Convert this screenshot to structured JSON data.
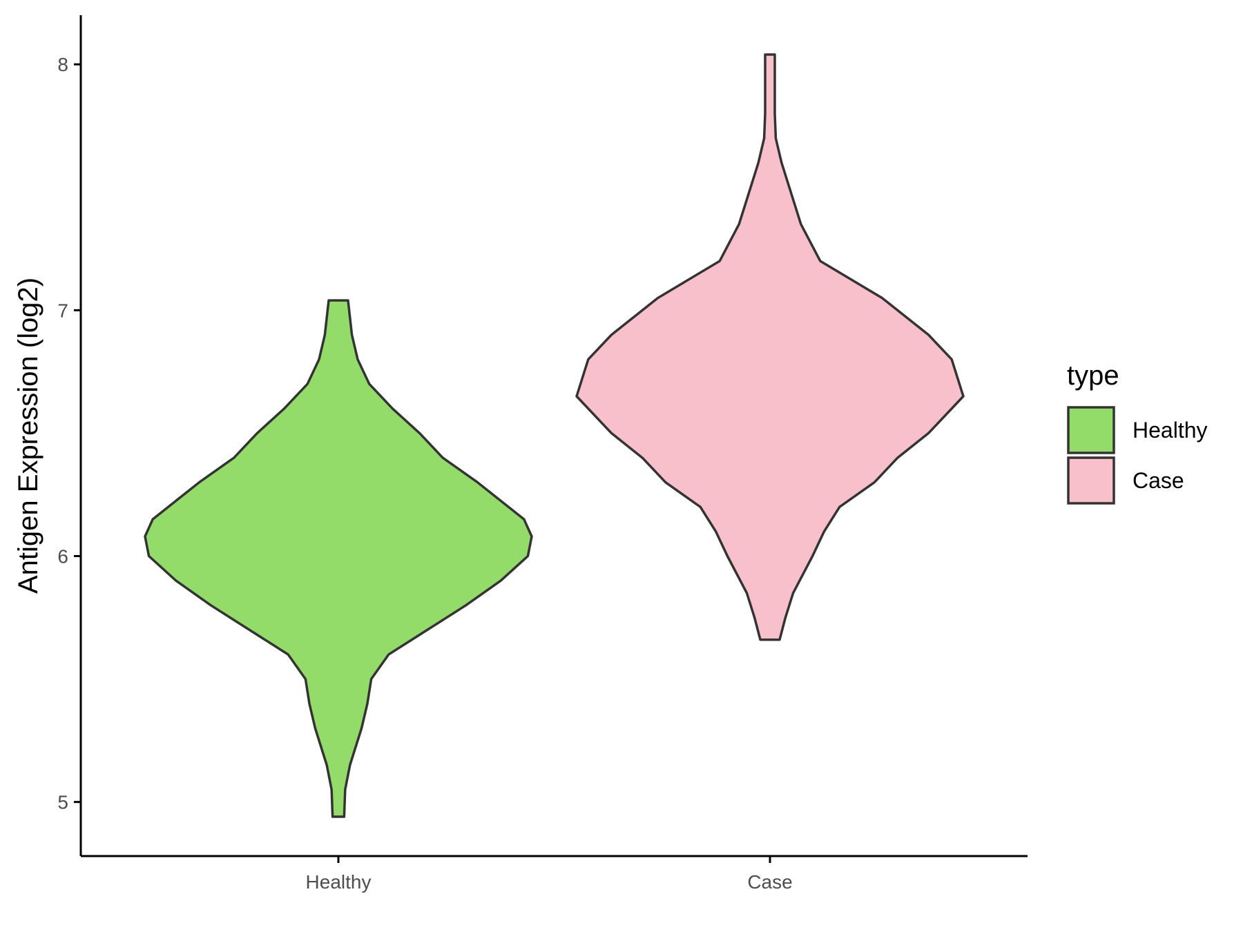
{
  "chart_data": {
    "type": "violin",
    "categories": [
      "Healthy",
      "Case"
    ],
    "ylabel": "Antigen Expression (log2)",
    "xlabel": "",
    "ylim": [
      4.78,
      8.2
    ],
    "yticks": [
      5,
      6,
      7,
      8
    ],
    "ytick_labels": [
      "5",
      "6",
      "7",
      "8"
    ],
    "grid": false,
    "legend": {
      "title": "type",
      "placement": "right",
      "entries": [
        {
          "label": "Healthy",
          "color": "#93DC6A"
        },
        {
          "label": "Case",
          "color": "#F7C0CB"
        }
      ]
    },
    "series": [
      {
        "name": "Healthy",
        "color": "#93DC6A",
        "min": 4.94,
        "max": 7.04,
        "profile": [
          [
            4.94,
            0.03
          ],
          [
            5.05,
            0.035
          ],
          [
            5.15,
            0.06
          ],
          [
            5.3,
            0.12
          ],
          [
            5.4,
            0.15
          ],
          [
            5.5,
            0.17
          ],
          [
            5.6,
            0.26
          ],
          [
            5.7,
            0.46
          ],
          [
            5.8,
            0.66
          ],
          [
            5.9,
            0.84
          ],
          [
            6.0,
            0.98
          ],
          [
            6.08,
            1.0
          ],
          [
            6.15,
            0.96
          ],
          [
            6.3,
            0.72
          ],
          [
            6.4,
            0.54
          ],
          [
            6.5,
            0.42
          ],
          [
            6.6,
            0.28
          ],
          [
            6.7,
            0.16
          ],
          [
            6.8,
            0.1
          ],
          [
            6.9,
            0.07
          ],
          [
            7.04,
            0.05
          ]
        ]
      },
      {
        "name": "Case",
        "color": "#F7C0CB",
        "min": 5.66,
        "max": 8.04,
        "profile": [
          [
            5.66,
            0.05
          ],
          [
            5.75,
            0.08
          ],
          [
            5.85,
            0.12
          ],
          [
            6.0,
            0.22
          ],
          [
            6.1,
            0.28
          ],
          [
            6.2,
            0.36
          ],
          [
            6.3,
            0.54
          ],
          [
            6.4,
            0.66
          ],
          [
            6.5,
            0.82
          ],
          [
            6.65,
            1.0
          ],
          [
            6.8,
            0.94
          ],
          [
            6.9,
            0.82
          ],
          [
            7.05,
            0.58
          ],
          [
            7.2,
            0.26
          ],
          [
            7.35,
            0.16
          ],
          [
            7.5,
            0.1
          ],
          [
            7.6,
            0.06
          ],
          [
            7.7,
            0.03
          ],
          [
            7.8,
            0.025
          ],
          [
            7.95,
            0.025
          ],
          [
            8.04,
            0.025
          ]
        ]
      }
    ]
  }
}
